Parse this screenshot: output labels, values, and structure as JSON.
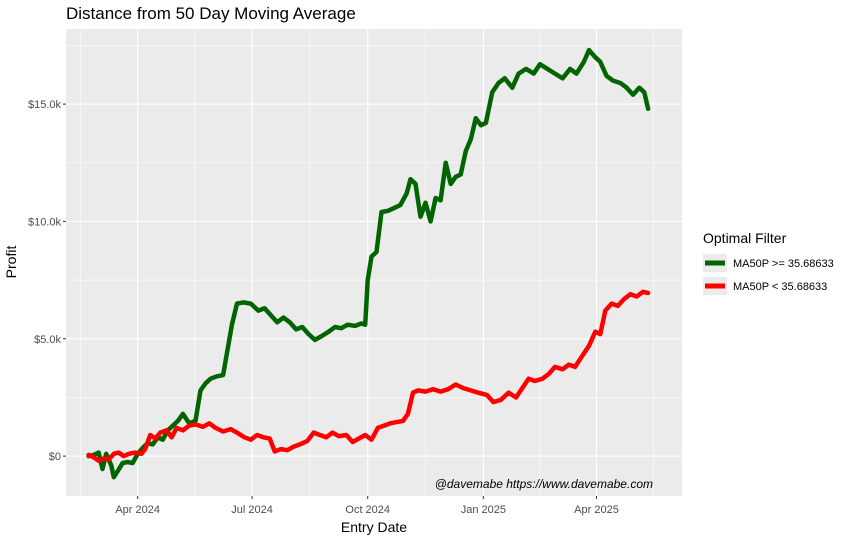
{
  "chart_data": {
    "type": "line",
    "title": "Distance from 50 Day Moving Average",
    "xlabel": "Entry Date",
    "ylabel": "Profit",
    "x_range": [
      "2024-02-04",
      "2025-06-08"
    ],
    "ylim": [
      -1700,
      18200
    ],
    "x_ticks": [
      {
        "date": "2024-04-01",
        "label": "Apr 2024"
      },
      {
        "date": "2024-07-01",
        "label": "Jul 2024"
      },
      {
        "date": "2024-10-01",
        "label": "Oct 2024"
      },
      {
        "date": "2025-01-01",
        "label": "Jan 2025"
      },
      {
        "date": "2025-04-01",
        "label": "Apr 2025"
      }
    ],
    "y_ticks": [
      {
        "value": 0,
        "label": "$0"
      },
      {
        "value": 5000,
        "label": "$5.0k"
      },
      {
        "value": 10000,
        "label": "$10.0k"
      },
      {
        "value": 15000,
        "label": "$15.0k"
      }
    ],
    "grid": true,
    "legend": {
      "title": "Optimal Filter",
      "position": "right"
    },
    "annotation": "@davemabe https://www.davemabe.com",
    "series": [
      {
        "name": "MA50P >= 35.68633",
        "color": "#006400",
        "points": [
          [
            "2024-02-22",
            0
          ],
          [
            "2024-02-26",
            50
          ],
          [
            "2024-03-01",
            150
          ],
          [
            "2024-03-04",
            -550
          ],
          [
            "2024-03-07",
            100
          ],
          [
            "2024-03-11",
            -400
          ],
          [
            "2024-03-13",
            -900
          ],
          [
            "2024-03-16",
            -650
          ],
          [
            "2024-03-20",
            -300
          ],
          [
            "2024-03-24",
            -250
          ],
          [
            "2024-03-28",
            -300
          ],
          [
            "2024-04-01",
            100
          ],
          [
            "2024-04-05",
            350
          ],
          [
            "2024-04-09",
            550
          ],
          [
            "2024-04-13",
            500
          ],
          [
            "2024-04-17",
            800
          ],
          [
            "2024-04-21",
            700
          ],
          [
            "2024-04-25",
            1100
          ],
          [
            "2024-04-29",
            1300
          ],
          [
            "2024-05-03",
            1500
          ],
          [
            "2024-05-07",
            1800
          ],
          [
            "2024-05-12",
            1400
          ],
          [
            "2024-05-17",
            1500
          ],
          [
            "2024-05-21",
            2800
          ],
          [
            "2024-05-25",
            3100
          ],
          [
            "2024-05-29",
            3300
          ],
          [
            "2024-06-03",
            3400
          ],
          [
            "2024-06-08",
            3450
          ],
          [
            "2024-06-15",
            5600
          ],
          [
            "2024-06-19",
            6500
          ],
          [
            "2024-06-24",
            6550
          ],
          [
            "2024-06-30",
            6500
          ],
          [
            "2024-07-06",
            6200
          ],
          [
            "2024-07-11",
            6300
          ],
          [
            "2024-07-16",
            6000
          ],
          [
            "2024-07-21",
            5700
          ],
          [
            "2024-07-26",
            5900
          ],
          [
            "2024-07-31",
            5700
          ],
          [
            "2024-08-05",
            5400
          ],
          [
            "2024-08-10",
            5500
          ],
          [
            "2024-08-15",
            5200
          ],
          [
            "2024-08-20",
            4950
          ],
          [
            "2024-08-25",
            5100
          ],
          [
            "2024-08-31",
            5300
          ],
          [
            "2024-09-05",
            5500
          ],
          [
            "2024-09-10",
            5450
          ],
          [
            "2024-09-15",
            5600
          ],
          [
            "2024-09-21",
            5550
          ],
          [
            "2024-09-26",
            5650
          ],
          [
            "2024-09-29",
            5600
          ],
          [
            "2024-10-01",
            7500
          ],
          [
            "2024-10-04",
            8500
          ],
          [
            "2024-10-08",
            8700
          ],
          [
            "2024-10-12",
            10400
          ],
          [
            "2024-10-17",
            10450
          ],
          [
            "2024-10-23",
            10600
          ],
          [
            "2024-10-27",
            10700
          ],
          [
            "2024-11-01",
            11200
          ],
          [
            "2024-11-04",
            11800
          ],
          [
            "2024-11-08",
            11600
          ],
          [
            "2024-11-12",
            10200
          ],
          [
            "2024-11-16",
            10800
          ],
          [
            "2024-11-20",
            10000
          ],
          [
            "2024-11-24",
            11000
          ],
          [
            "2024-11-28",
            10900
          ],
          [
            "2024-12-02",
            12500
          ],
          [
            "2024-12-06",
            11600
          ],
          [
            "2024-12-10",
            11900
          ],
          [
            "2024-12-14",
            12000
          ],
          [
            "2024-12-18",
            13000
          ],
          [
            "2024-12-22",
            13500
          ],
          [
            "2024-12-26",
            14400
          ],
          [
            "2024-12-30",
            14100
          ],
          [
            "2025-01-03",
            14200
          ],
          [
            "2025-01-08",
            15500
          ],
          [
            "2025-01-13",
            15900
          ],
          [
            "2025-01-18",
            16100
          ],
          [
            "2025-01-24",
            15700
          ],
          [
            "2025-01-29",
            16300
          ],
          [
            "2025-02-04",
            16500
          ],
          [
            "2025-02-10",
            16300
          ],
          [
            "2025-02-15",
            16700
          ],
          [
            "2025-02-21",
            16500
          ],
          [
            "2025-02-27",
            16300
          ],
          [
            "2025-03-05",
            16100
          ],
          [
            "2025-03-11",
            16500
          ],
          [
            "2025-03-16",
            16300
          ],
          [
            "2025-03-22",
            16800
          ],
          [
            "2025-03-26",
            17300
          ],
          [
            "2025-03-31",
            17000
          ],
          [
            "2025-04-04",
            16800
          ],
          [
            "2025-04-09",
            16200
          ],
          [
            "2025-04-14",
            16000
          ],
          [
            "2025-04-20",
            15900
          ],
          [
            "2025-04-25",
            15700
          ],
          [
            "2025-04-30",
            15400
          ],
          [
            "2025-05-05",
            15700
          ],
          [
            "2025-05-09",
            15500
          ],
          [
            "2025-05-12",
            14800
          ]
        ]
      },
      {
        "name": "MA50P < 35.68633",
        "color": "#ff0000",
        "points": [
          [
            "2024-02-22",
            50
          ],
          [
            "2024-02-26",
            -50
          ],
          [
            "2024-03-01",
            -200
          ],
          [
            "2024-03-05",
            -100
          ],
          [
            "2024-03-09",
            -150
          ],
          [
            "2024-03-13",
            100
          ],
          [
            "2024-03-17",
            150
          ],
          [
            "2024-03-21",
            0
          ],
          [
            "2024-03-25",
            100
          ],
          [
            "2024-03-30",
            150
          ],
          [
            "2024-04-04",
            100
          ],
          [
            "2024-04-07",
            300
          ],
          [
            "2024-04-11",
            900
          ],
          [
            "2024-04-15",
            750
          ],
          [
            "2024-04-19",
            1000
          ],
          [
            "2024-04-24",
            1100
          ],
          [
            "2024-04-28",
            800
          ],
          [
            "2024-05-02",
            1200
          ],
          [
            "2024-05-07",
            1100
          ],
          [
            "2024-05-12",
            1300
          ],
          [
            "2024-05-17",
            1350
          ],
          [
            "2024-05-23",
            1250
          ],
          [
            "2024-05-28",
            1400
          ],
          [
            "2024-06-02",
            1200
          ],
          [
            "2024-06-08",
            1050
          ],
          [
            "2024-06-14",
            1150
          ],
          [
            "2024-06-19",
            1000
          ],
          [
            "2024-06-25",
            800
          ],
          [
            "2024-06-30",
            700
          ],
          [
            "2024-07-05",
            900
          ],
          [
            "2024-07-10",
            800
          ],
          [
            "2024-07-15",
            750
          ],
          [
            "2024-07-19",
            200
          ],
          [
            "2024-07-24",
            300
          ],
          [
            "2024-07-29",
            250
          ],
          [
            "2024-08-03",
            400
          ],
          [
            "2024-08-08",
            500
          ],
          [
            "2024-08-14",
            650
          ],
          [
            "2024-08-19",
            1000
          ],
          [
            "2024-08-24",
            900
          ],
          [
            "2024-08-29",
            800
          ],
          [
            "2024-09-03",
            1000
          ],
          [
            "2024-09-08",
            850
          ],
          [
            "2024-09-14",
            900
          ],
          [
            "2024-09-19",
            600
          ],
          [
            "2024-09-24",
            750
          ],
          [
            "2024-09-29",
            900
          ],
          [
            "2024-10-04",
            700
          ],
          [
            "2024-10-09",
            1200
          ],
          [
            "2024-10-14",
            1300
          ],
          [
            "2024-10-19",
            1400
          ],
          [
            "2024-10-24",
            1450
          ],
          [
            "2024-10-29",
            1500
          ],
          [
            "2024-11-02",
            1800
          ],
          [
            "2024-11-06",
            2700
          ],
          [
            "2024-11-10",
            2800
          ],
          [
            "2024-11-16",
            2750
          ],
          [
            "2024-11-22",
            2850
          ],
          [
            "2024-11-28",
            2750
          ],
          [
            "2024-12-04",
            2850
          ],
          [
            "2024-12-10",
            3050
          ],
          [
            "2024-12-16",
            2900
          ],
          [
            "2024-12-22",
            2800
          ],
          [
            "2024-12-28",
            2700
          ],
          [
            "2025-01-04",
            2600
          ],
          [
            "2025-01-09",
            2300
          ],
          [
            "2025-01-15",
            2400
          ],
          [
            "2025-01-21",
            2700
          ],
          [
            "2025-01-27",
            2500
          ],
          [
            "2025-02-01",
            2900
          ],
          [
            "2025-02-06",
            3300
          ],
          [
            "2025-02-11",
            3200
          ],
          [
            "2025-02-17",
            3300
          ],
          [
            "2025-02-22",
            3500
          ],
          [
            "2025-02-27",
            3800
          ],
          [
            "2025-03-05",
            3700
          ],
          [
            "2025-03-10",
            3900
          ],
          [
            "2025-03-15",
            3800
          ],
          [
            "2025-03-21",
            4300
          ],
          [
            "2025-03-26",
            4700
          ],
          [
            "2025-03-31",
            5300
          ],
          [
            "2025-04-04",
            5200
          ],
          [
            "2025-04-08",
            6200
          ],
          [
            "2025-04-13",
            6500
          ],
          [
            "2025-04-18",
            6400
          ],
          [
            "2025-04-23",
            6700
          ],
          [
            "2025-04-28",
            6900
          ],
          [
            "2025-05-03",
            6800
          ],
          [
            "2025-05-08",
            7000
          ],
          [
            "2025-05-12",
            6950
          ]
        ]
      }
    ]
  }
}
